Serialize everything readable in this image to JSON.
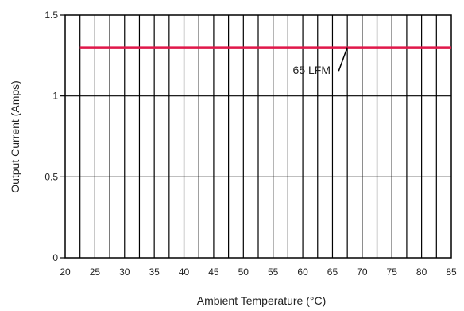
{
  "chart_data": {
    "type": "line",
    "xlabel": "Ambient Temperature (°C)",
    "ylabel": "Output Current (Amps)",
    "xlim": [
      20,
      85
    ],
    "ylim": [
      0,
      1.5
    ],
    "xticks": [
      20,
      25,
      30,
      35,
      40,
      45,
      50,
      55,
      60,
      65,
      70,
      75,
      80,
      85
    ],
    "xtick_labels": [
      "20",
      "25",
      "30",
      "35",
      "40",
      "45",
      "50",
      "55",
      "60",
      "65",
      "70",
      "75",
      "80",
      "85"
    ],
    "yticks": [
      0,
      0.5,
      1,
      1.5
    ],
    "ytick_labels": [
      "0",
      "0.5",
      "1",
      "1.5"
    ],
    "grid": true,
    "series": [
      {
        "name": "65 LFM",
        "color": "#e0184a",
        "x": [
          22.5,
          85
        ],
        "y": [
          1.3,
          1.3
        ]
      }
    ],
    "annotations": [
      {
        "text": "65 LFM",
        "text_at": [
          61.5,
          1.135
        ],
        "arrow_to": [
          67.5,
          1.3
        ]
      }
    ]
  }
}
